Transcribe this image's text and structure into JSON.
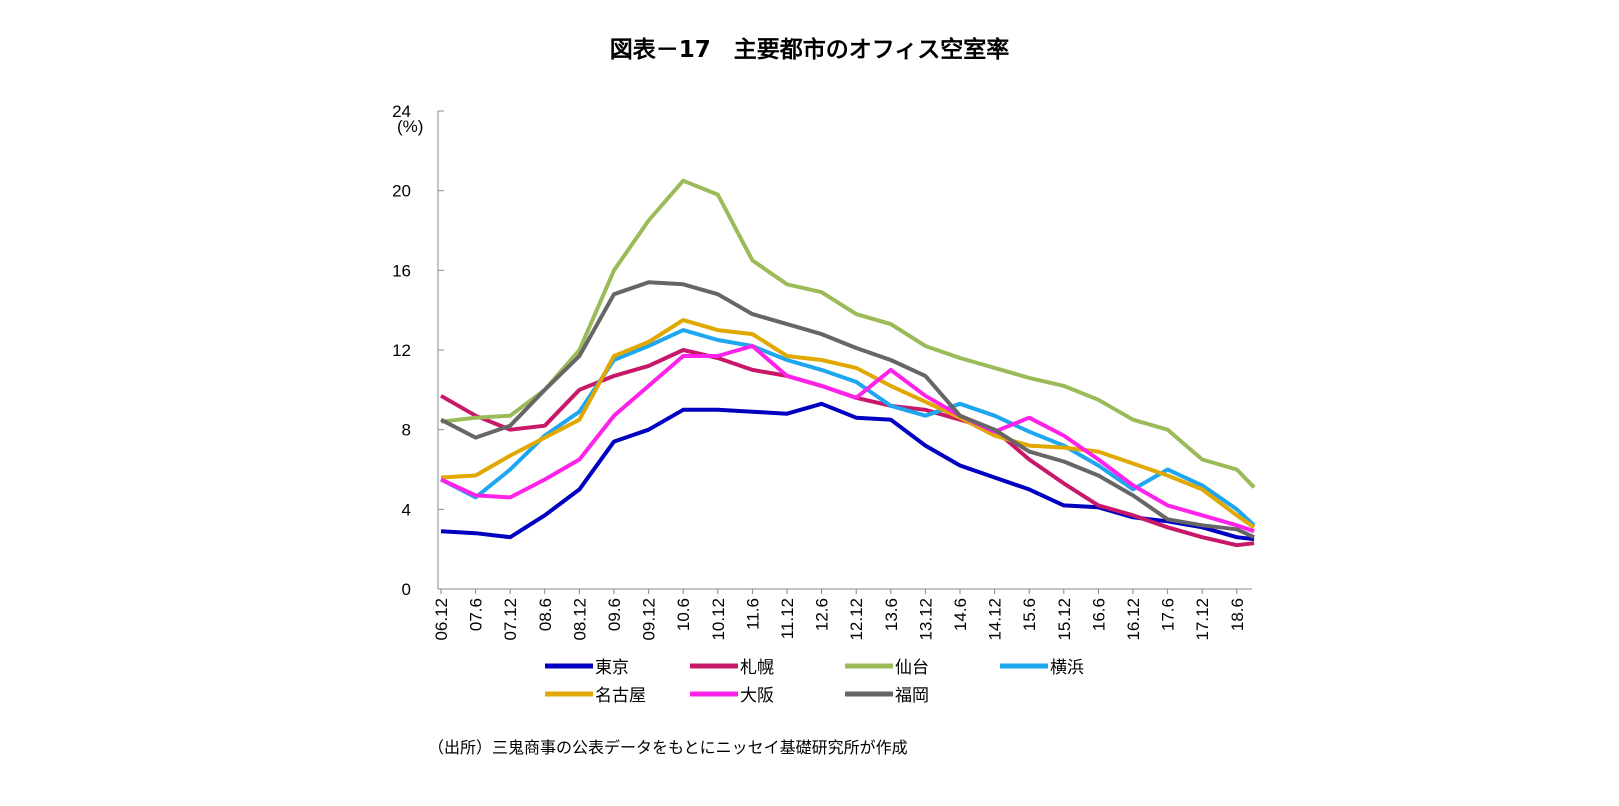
{
  "title": "図表－17　主要都市のオフィス空室率",
  "source": "（出所）三鬼商事の公表データをもとにニッセイ基礎研究所が作成",
  "chart_data": {
    "type": "line",
    "title": "図表－17　主要都市のオフィス空室率",
    "ylabel": "(%)",
    "ylim": [
      0,
      24
    ],
    "yticks": [
      "0",
      "4",
      "8",
      "12",
      "16",
      "20",
      "24"
    ],
    "xticks": [
      "06.12",
      "07.6",
      "07.12",
      "08.6",
      "08.12",
      "09.6",
      "09.12",
      "10.6",
      "10.12",
      "11.6",
      "11.12",
      "12.6",
      "12.12",
      "13.6",
      "13.12",
      "14.6",
      "14.12",
      "15.6",
      "15.12",
      "16.6",
      "16.12",
      "17.6",
      "17.12",
      "18.6"
    ],
    "x": [
      "06.12",
      "07.6",
      "07.12",
      "08.6",
      "08.12",
      "09.6",
      "09.12",
      "10.6",
      "10.12",
      "11.6",
      "11.12",
      "12.6",
      "12.12",
      "13.6",
      "13.12",
      "14.6",
      "14.12",
      "15.6",
      "15.12",
      "16.6",
      "16.12",
      "17.6",
      "17.12",
      "18.6",
      "18.9"
    ],
    "grid": false,
    "legend": "bottom",
    "series": [
      {
        "name": "東京",
        "color": "#0000c0",
        "values": [
          2.9,
          2.8,
          2.6,
          3.7,
          5.0,
          7.4,
          8.0,
          9.0,
          9.0,
          8.9,
          8.8,
          9.3,
          8.6,
          8.5,
          7.2,
          6.2,
          5.6,
          5.0,
          4.2,
          4.1,
          3.6,
          3.4,
          3.1,
          2.6,
          2.5
        ]
      },
      {
        "name": "札幌",
        "color": "#c8186a",
        "values": [
          9.7,
          8.7,
          8.0,
          8.2,
          10.0,
          10.7,
          11.2,
          12.0,
          11.6,
          11.0,
          10.7,
          10.2,
          9.6,
          9.2,
          9.0,
          8.5,
          8.0,
          6.5,
          5.3,
          4.2,
          3.7,
          3.1,
          2.6,
          2.2,
          2.3
        ]
      },
      {
        "name": "仙台",
        "color": "#9bbb59",
        "values": [
          8.4,
          8.6,
          8.7,
          10.0,
          12.0,
          16.0,
          18.5,
          20.5,
          19.8,
          16.5,
          15.3,
          14.9,
          13.8,
          13.3,
          12.2,
          11.6,
          11.1,
          10.6,
          10.2,
          9.5,
          8.5,
          8.0,
          6.5,
          6.0,
          5.1
        ]
      },
      {
        "name": "横浜",
        "color": "#1ea6f0",
        "values": [
          5.5,
          4.6,
          6.0,
          7.7,
          8.9,
          11.5,
          12.2,
          13.0,
          12.5,
          12.2,
          11.5,
          11.0,
          10.4,
          9.2,
          8.7,
          9.3,
          8.7,
          7.9,
          7.2,
          6.2,
          5.0,
          6.0,
          5.2,
          4.0,
          3.2
        ]
      },
      {
        "name": "名古屋",
        "color": "#e0a800",
        "values": [
          5.6,
          5.7,
          6.7,
          7.6,
          8.5,
          11.7,
          12.4,
          13.5,
          13.0,
          12.8,
          11.7,
          11.5,
          11.1,
          10.2,
          9.4,
          8.6,
          7.7,
          7.2,
          7.1,
          6.9,
          6.3,
          5.7,
          5.0,
          3.7,
          3.1
        ]
      },
      {
        "name": "大阪",
        "color": "#ff22e8",
        "values": [
          5.5,
          4.7,
          4.6,
          5.5,
          6.5,
          8.7,
          10.2,
          11.7,
          11.7,
          12.2,
          10.7,
          10.2,
          9.6,
          11.0,
          9.7,
          8.7,
          7.9,
          8.6,
          7.7,
          6.5,
          5.2,
          4.2,
          3.7,
          3.2,
          2.9
        ]
      },
      {
        "name": "福岡",
        "color": "#666666",
        "values": [
          8.5,
          7.6,
          8.2,
          10.0,
          11.7,
          14.8,
          15.4,
          15.3,
          14.8,
          13.8,
          13.3,
          12.8,
          12.1,
          11.5,
          10.7,
          8.7,
          8.0,
          6.9,
          6.4,
          5.7,
          4.7,
          3.5,
          3.2,
          3.0,
          2.6
        ]
      }
    ]
  }
}
